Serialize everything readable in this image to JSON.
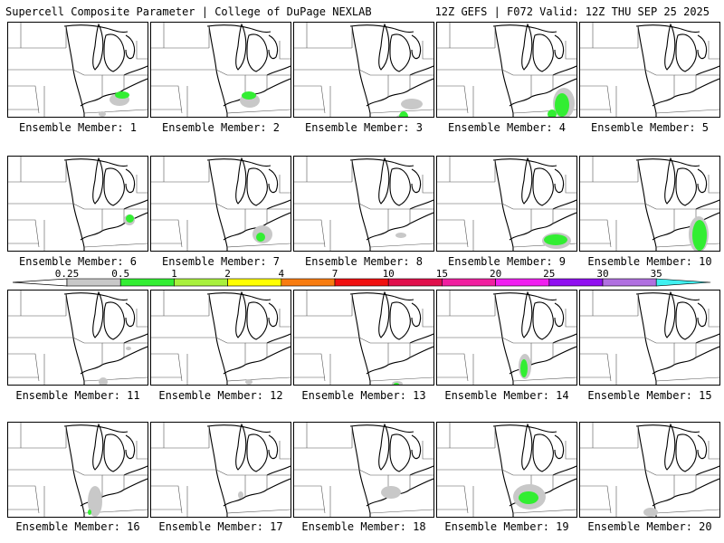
{
  "header": {
    "left_title": "Supercell Composite Parameter | College of DuPage NEXLAB",
    "right_title": "12Z GEFS | F072 Valid: 12Z THU SEP 25 2025"
  },
  "legend": {
    "levels": [
      "0.25",
      "0.5",
      "1",
      "2",
      "4",
      "7",
      "10",
      "15",
      "20",
      "25",
      "30",
      "35"
    ],
    "colors": [
      "#c8c8c8",
      "#32ee32",
      "#a8f03c",
      "#ffff00",
      "#f87c10",
      "#f01010",
      "#e0104c",
      "#f020a0",
      "#f020f0",
      "#9010f0",
      "#b070e0",
      "#40f0f0"
    ]
  },
  "panel_label_prefix": "Ensemble Member: ",
  "members": [
    {
      "id": "1",
      "label": "Ensemble Member: 1",
      "gray": [
        [
          112,
          78,
          22,
          14
        ],
        [
          100,
          98,
          8,
          6
        ]
      ],
      "green": [
        [
          118,
          76,
          16,
          8
        ]
      ]
    },
    {
      "id": "2",
      "label": "Ensemble Member: 2",
      "gray": [
        [
          98,
          78,
          22,
          16
        ]
      ],
      "green": [
        [
          100,
          76,
          16,
          9
        ]
      ]
    },
    {
      "id": "3",
      "label": "Ensemble Member: 3",
      "gray": [
        [
          118,
          84,
          24,
          12
        ],
        [
          112,
          102,
          10,
          10
        ]
      ],
      "green": [
        [
          116,
          98,
          10,
          12
        ]
      ]
    },
    {
      "id": "4",
      "label": "Ensemble Member: 4",
      "gray": [
        [
          128,
          72,
          24,
          34
        ]
      ],
      "green": [
        [
          130,
          78,
          16,
          26
        ],
        [
          122,
          96,
          10,
          10
        ]
      ]
    },
    {
      "id": "5",
      "label": "Ensemble Member: 5",
      "gray": [],
      "green": []
    },
    {
      "id": "6",
      "label": "Ensemble Member: 6",
      "gray": [
        [
          128,
          64,
          12,
          12
        ]
      ],
      "green": [
        [
          130,
          64,
          9,
          9
        ]
      ]
    },
    {
      "id": "7",
      "label": "Ensemble Member: 7",
      "gray": [
        [
          112,
          76,
          22,
          20
        ]
      ],
      "green": [
        [
          116,
          84,
          10,
          10
        ]
      ]
    },
    {
      "id": "8",
      "label": "Ensemble Member: 8",
      "gray": [
        [
          112,
          84,
          12,
          6
        ]
      ],
      "green": []
    },
    {
      "id": "9",
      "label": "Ensemble Member: 9",
      "gray": [
        [
          116,
          84,
          32,
          18
        ]
      ],
      "green": [
        [
          118,
          86,
          26,
          12
        ]
      ]
    },
    {
      "id": "10",
      "label": "Ensemble Member: 10",
      "gray": [
        [
          120,
          66,
          22,
          40
        ]
      ],
      "green": [
        [
          124,
          70,
          16,
          34
        ]
      ]
    },
    {
      "id": "11",
      "label": "Ensemble Member: 11",
      "gray": [
        [
          100,
          96,
          10,
          10
        ],
        [
          130,
          62,
          6,
          4
        ]
      ],
      "green": []
    },
    {
      "id": "12",
      "label": "Ensemble Member: 12",
      "gray": [
        [
          104,
          98,
          8,
          6
        ]
      ],
      "green": []
    },
    {
      "id": "13",
      "label": "Ensemble Member: 13",
      "gray": [
        [
          108,
          100,
          12,
          6
        ]
      ],
      "green": [
        [
          110,
          102,
          6,
          4
        ]
      ]
    },
    {
      "id": "14",
      "label": "Ensemble Member: 14",
      "gray": [
        [
          90,
          70,
          14,
          28
        ]
      ],
      "green": [
        [
          92,
          76,
          8,
          20
        ]
      ]
    },
    {
      "id": "15",
      "label": "Ensemble Member: 15",
      "gray": [],
      "green": []
    },
    {
      "id": "16",
      "label": "Ensemble Member: 16",
      "gray": [
        [
          88,
          70,
          16,
          34
        ]
      ],
      "green": [
        [
          88,
          96,
          4,
          6
        ]
      ]
    },
    {
      "id": "17",
      "label": "Ensemble Member: 17",
      "gray": [
        [
          96,
          76,
          6,
          8
        ]
      ],
      "green": []
    },
    {
      "id": "18",
      "label": "Ensemble Member: 18",
      "gray": [
        [
          96,
          70,
          22,
          14
        ]
      ],
      "green": []
    },
    {
      "id": "19",
      "label": "Ensemble Member: 19",
      "gray": [
        [
          84,
          68,
          36,
          28
        ]
      ],
      "green": [
        [
          90,
          76,
          22,
          14
        ]
      ]
    },
    {
      "id": "20",
      "label": "Ensemble Member: 20",
      "gray": [
        [
          70,
          94,
          16,
          10
        ]
      ],
      "green": []
    }
  ]
}
